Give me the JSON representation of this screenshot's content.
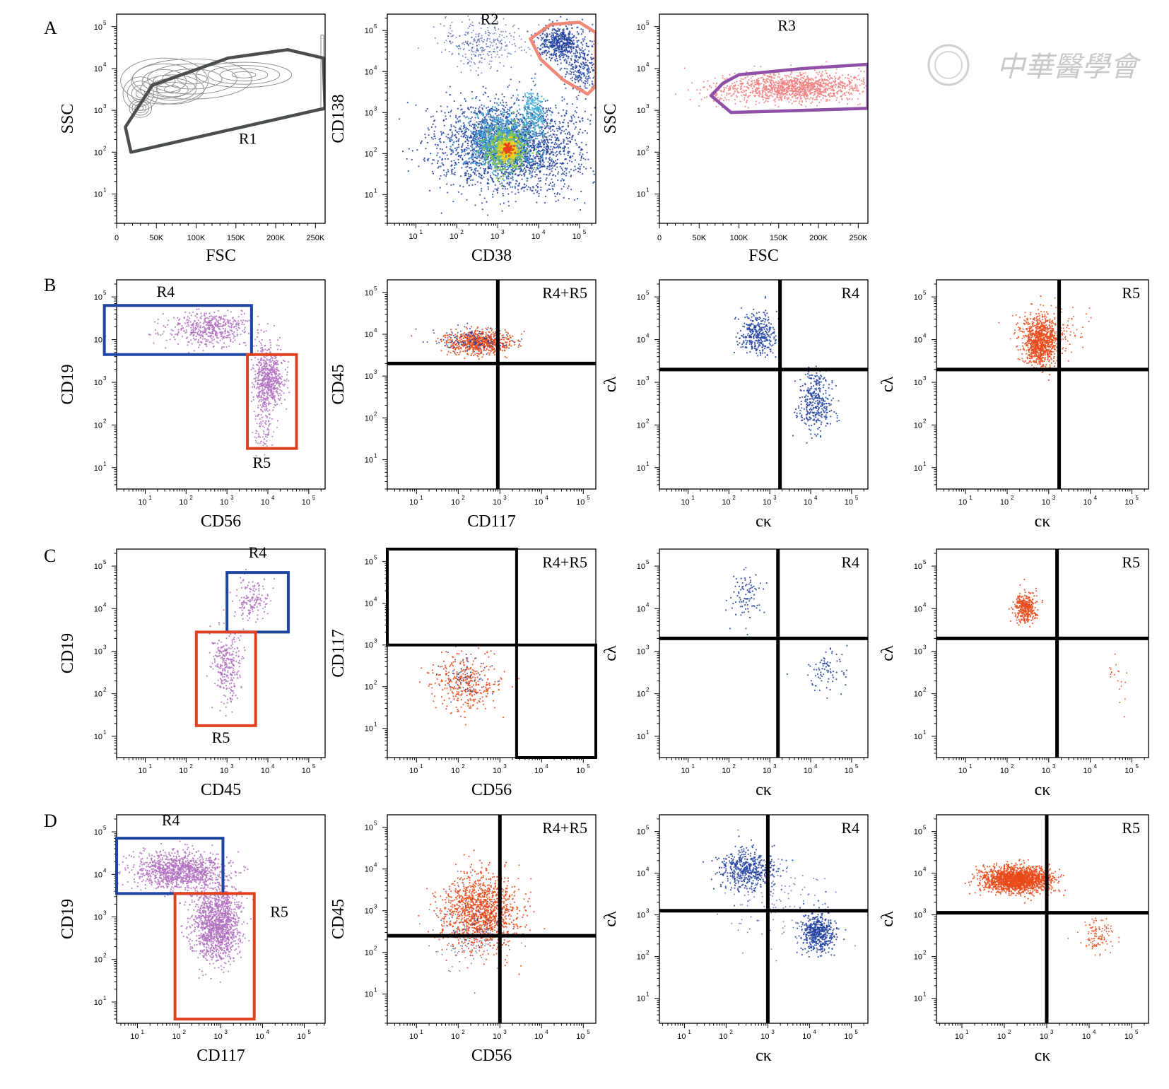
{
  "watermark": {
    "text": "中華醫學會",
    "color": "#c8c8c8"
  },
  "colors": {
    "gray_gate": "#4a4f4a",
    "salmon_gate": "#f08878",
    "purple_gate": "#9050a8",
    "blue_gate": "#1e46a0",
    "red_gate": "#e04020",
    "blue_dots": "#2040a0",
    "red_dots": "#e84a1a",
    "purple_dots": "#b070c0",
    "pink_dots": "#f08080"
  },
  "chart_data": [
    {
      "id": "A1",
      "row_label": "A",
      "type": "contour",
      "xlabel": "FSC",
      "ylabel": "SSC",
      "xscale": "linear",
      "yscale": "log",
      "xticks": [
        "0",
        "50K",
        "100K",
        "150K",
        "200K",
        "250K"
      ],
      "xlim": [
        0,
        262144
      ],
      "ylim": [
        0.3,
        5.3
      ],
      "gates": [
        {
          "label": "R1",
          "shape": "polygon",
          "color": "#4a4f4a",
          "points": [
            [
              18000,
              2.0
            ],
            [
              11000,
              2.6
            ],
            [
              45000,
              3.6
            ],
            [
              140000,
              4.25
            ],
            [
              215000,
              4.45
            ],
            [
              260000,
              4.25
            ],
            [
              262000,
              3.05
            ]
          ],
          "label_at": [
            165000,
            2.2
          ]
        }
      ]
    },
    {
      "id": "A2",
      "type": "density",
      "xlabel": "CD38",
      "ylabel": "CD138",
      "xscale": "log",
      "yscale": "log",
      "xlim": [
        0.3,
        5.4
      ],
      "ylim": [
        0.3,
        5.4
      ],
      "gates": [
        {
          "label": "R2",
          "shape": "polygon",
          "color": "#f08878",
          "points": [
            [
              3.8,
              4.8
            ],
            [
              4.3,
              5.15
            ],
            [
              5.0,
              5.2
            ],
            [
              5.4,
              4.95
            ],
            [
              5.4,
              3.65
            ],
            [
              5.2,
              3.45
            ],
            [
              4.6,
              3.8
            ],
            [
              4.05,
              4.3
            ]
          ],
          "label_at": [
            2.8,
            5.15
          ]
        }
      ]
    },
    {
      "id": "A3",
      "type": "scatter",
      "xlabel": "FSC",
      "ylabel": "SSC",
      "xscale": "linear",
      "yscale": "log",
      "xticks": [
        "0",
        "50K",
        "100K",
        "150K",
        "200K",
        "250K"
      ],
      "xlim": [
        0,
        262144
      ],
      "ylim": [
        0.3,
        5.3
      ],
      "gates": [
        {
          "label": "R3",
          "shape": "polygon",
          "color": "#9050a8",
          "points": [
            [
              80000,
              3.65
            ],
            [
              100000,
              3.85
            ],
            [
              180000,
              4.0
            ],
            [
              262000,
              4.1
            ],
            [
              262000,
              3.05
            ],
            [
              180000,
              3.0
            ],
            [
              90000,
              2.95
            ],
            [
              65000,
              3.35
            ]
          ],
          "label_at": [
            160000,
            4.9
          ]
        }
      ]
    },
    {
      "id": "B1",
      "row_label": "B",
      "type": "scatter",
      "xlabel": "CD56",
      "ylabel": "CD19",
      "xscale": "log",
      "yscale": "log",
      "xlim": [
        0.3,
        5.4
      ],
      "ylim": [
        0.5,
        5.4
      ],
      "gates": [
        {
          "label": "R4",
          "shape": "rect",
          "color": "#1e46a0",
          "x": [
            0.0,
            3.6
          ],
          "y": [
            3.65,
            4.8
          ],
          "label_at": [
            1.5,
            5.0
          ]
        },
        {
          "label": "R5",
          "shape": "rect",
          "color": "#e04020",
          "x": [
            3.5,
            4.7
          ],
          "y": [
            1.45,
            3.65
          ],
          "label_at": [
            3.85,
            1.0
          ]
        }
      ]
    },
    {
      "id": "B2",
      "type": "quadrant-scatter",
      "xlabel": "CD117",
      "ylabel": "CD45",
      "xscale": "log",
      "yscale": "log",
      "xlim": [
        0.3,
        5.3
      ],
      "ylim": [
        0.3,
        5.3
      ],
      "corner_label": "R4+R5",
      "quadrant_lines": {
        "x": 2.95,
        "y": 3.3
      }
    },
    {
      "id": "B3",
      "type": "quadrant-scatter",
      "xlabel": "cκ",
      "ylabel": "cλ",
      "xscale": "log",
      "yscale": "log",
      "xlim": [
        0.3,
        5.4
      ],
      "ylim": [
        0.5,
        5.4
      ],
      "corner_label": "R4",
      "quadrant_lines": {
        "x": 3.25,
        "y": 3.3
      }
    },
    {
      "id": "B4",
      "type": "quadrant-scatter",
      "xlabel": "cκ",
      "ylabel": "cλ",
      "xscale": "log",
      "yscale": "log",
      "xlim": [
        0.3,
        5.4
      ],
      "ylim": [
        0.5,
        5.4
      ],
      "corner_label": "R5",
      "quadrant_lines": {
        "x": 3.25,
        "y": 3.3
      }
    },
    {
      "id": "C1",
      "row_label": "C",
      "type": "scatter",
      "xlabel": "CD45",
      "ylabel": "CD19",
      "xscale": "log",
      "yscale": "log",
      "xlim": [
        0.3,
        5.4
      ],
      "ylim": [
        0.5,
        5.4
      ],
      "gates": [
        {
          "label": "R4",
          "shape": "rect",
          "color": "#1e46a0",
          "x": [
            3.0,
            4.5
          ],
          "y": [
            3.45,
            4.85
          ],
          "label_at": [
            3.75,
            5.2
          ]
        },
        {
          "label": "R5",
          "shape": "rect",
          "color": "#e04020",
          "x": [
            2.25,
            3.7
          ],
          "y": [
            1.25,
            3.45
          ],
          "label_at": [
            2.85,
            0.85
          ]
        }
      ]
    },
    {
      "id": "C2",
      "type": "quadrant-scatter",
      "xlabel": "CD56",
      "ylabel": "CD117",
      "xscale": "log",
      "yscale": "log",
      "xlim": [
        0.3,
        5.3
      ],
      "ylim": [
        0.3,
        5.3
      ],
      "corner_label": "R4+R5",
      "quadrant_lines": {
        "x": 3.4,
        "y": 3.0
      },
      "gate_boxes": [
        {
          "x": [
            0.3,
            3.4
          ],
          "y": [
            3.0,
            5.3
          ]
        },
        {
          "x": [
            3.4,
            5.3
          ],
          "y": [
            0.3,
            3.0
          ]
        }
      ]
    },
    {
      "id": "C3",
      "type": "quadrant-scatter",
      "xlabel": "cκ",
      "ylabel": "cλ",
      "xscale": "log",
      "yscale": "log",
      "xlim": [
        0.3,
        5.4
      ],
      "ylim": [
        0.5,
        5.4
      ],
      "corner_label": "R4",
      "quadrant_lines": {
        "x": 3.2,
        "y": 3.3
      }
    },
    {
      "id": "C4",
      "type": "quadrant-scatter",
      "xlabel": "cκ",
      "ylabel": "cλ",
      "xscale": "log",
      "yscale": "log",
      "xlim": [
        0.3,
        5.4
      ],
      "ylim": [
        0.5,
        5.4
      ],
      "corner_label": "R5",
      "quadrant_lines": {
        "x": 3.2,
        "y": 3.3
      }
    },
    {
      "id": "D1",
      "row_label": "D",
      "type": "scatter",
      "xlabel": "CD117",
      "ylabel": "CD19",
      "xscale": "log",
      "yscale": "log",
      "xlim": [
        0.5,
        5.5
      ],
      "ylim": [
        0.5,
        5.4
      ],
      "gates": [
        {
          "label": "R4",
          "shape": "rect",
          "color": "#1e46a0",
          "x": [
            0.5,
            3.05
          ],
          "y": [
            3.55,
            4.85
          ],
          "label_at": [
            1.8,
            5.15
          ]
        },
        {
          "label": "R5",
          "shape": "rect",
          "color": "#e04020",
          "x": [
            1.9,
            3.8
          ],
          "y": [
            0.6,
            3.55
          ],
          "label_at": [
            4.4,
            3.0
          ]
        }
      ]
    },
    {
      "id": "D2",
      "type": "quadrant-scatter",
      "xlabel": "CD56",
      "ylabel": "CD45",
      "xscale": "log",
      "yscale": "log",
      "xlim": [
        0.3,
        5.3
      ],
      "ylim": [
        0.3,
        5.3
      ],
      "corner_label": "R4+R5",
      "quadrant_lines": {
        "x": 3.0,
        "y": 2.4
      }
    },
    {
      "id": "D3",
      "type": "quadrant-scatter",
      "xlabel": "cκ",
      "ylabel": "cλ",
      "xscale": "log",
      "yscale": "log",
      "xlim": [
        0.4,
        5.4
      ],
      "ylim": [
        0.4,
        5.4
      ],
      "corner_label": "R4",
      "quadrant_lines": {
        "x": 3.0,
        "y": 3.1
      }
    },
    {
      "id": "D4",
      "type": "quadrant-scatter",
      "xlabel": "cκ",
      "ylabel": "cλ",
      "xscale": "log",
      "yscale": "log",
      "xlim": [
        0.4,
        5.4
      ],
      "ylim": [
        0.4,
        5.4
      ],
      "corner_label": "R5",
      "quadrant_lines": {
        "x": 3.0,
        "y": 3.05
      }
    }
  ]
}
